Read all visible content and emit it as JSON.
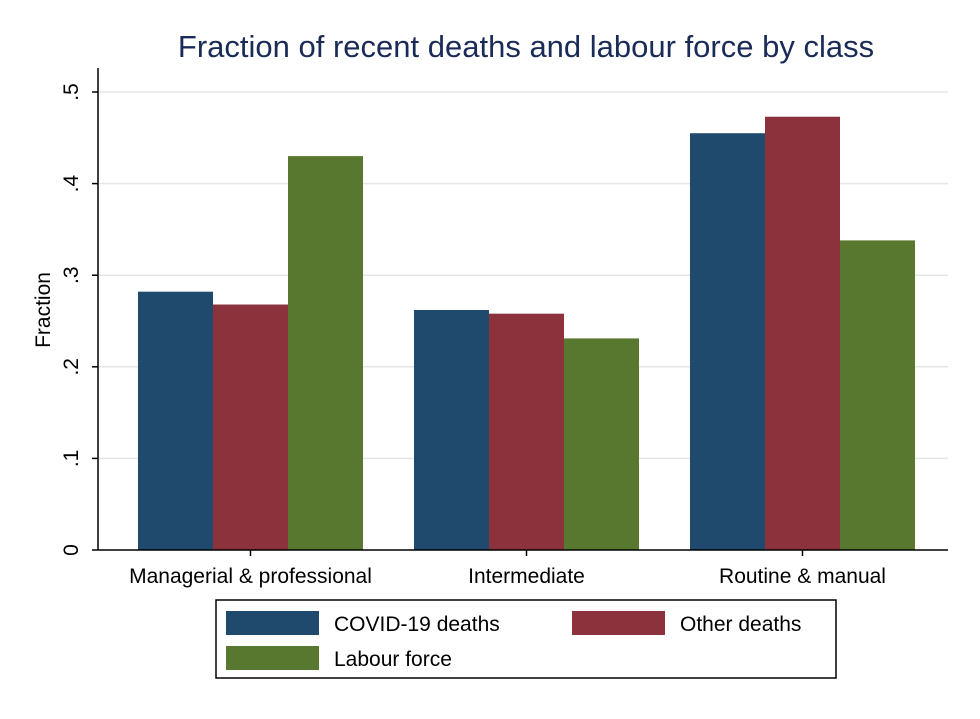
{
  "chart_data": {
    "type": "bar",
    "title": "Fraction of recent deaths and labour force by class",
    "xlabel": "",
    "ylabel": "Fraction",
    "categories": [
      "Managerial & professional",
      "Intermediate",
      "Routine & manual"
    ],
    "series": [
      {
        "name": "COVID-19 deaths",
        "color": "#1f4a6e",
        "values": [
          0.282,
          0.262,
          0.455
        ]
      },
      {
        "name": "Other deaths",
        "color": "#8b323c",
        "values": [
          0.268,
          0.258,
          0.473
        ]
      },
      {
        "name": "Labour force",
        "color": "#58772f",
        "values": [
          0.43,
          0.231,
          0.338
        ]
      }
    ],
    "ylim": [
      0,
      0.5
    ],
    "yticks": [
      0,
      0.1,
      0.2,
      0.3,
      0.4,
      0.5
    ],
    "ytick_labels": [
      "0",
      ".1",
      ".2",
      ".3",
      ".4",
      ".5"
    ],
    "grid": true,
    "legend_position": "bottom"
  },
  "colors": {
    "title": "#1a2b57",
    "text": "#000000",
    "grid": "#e6e6e6",
    "axis": "#000000"
  }
}
